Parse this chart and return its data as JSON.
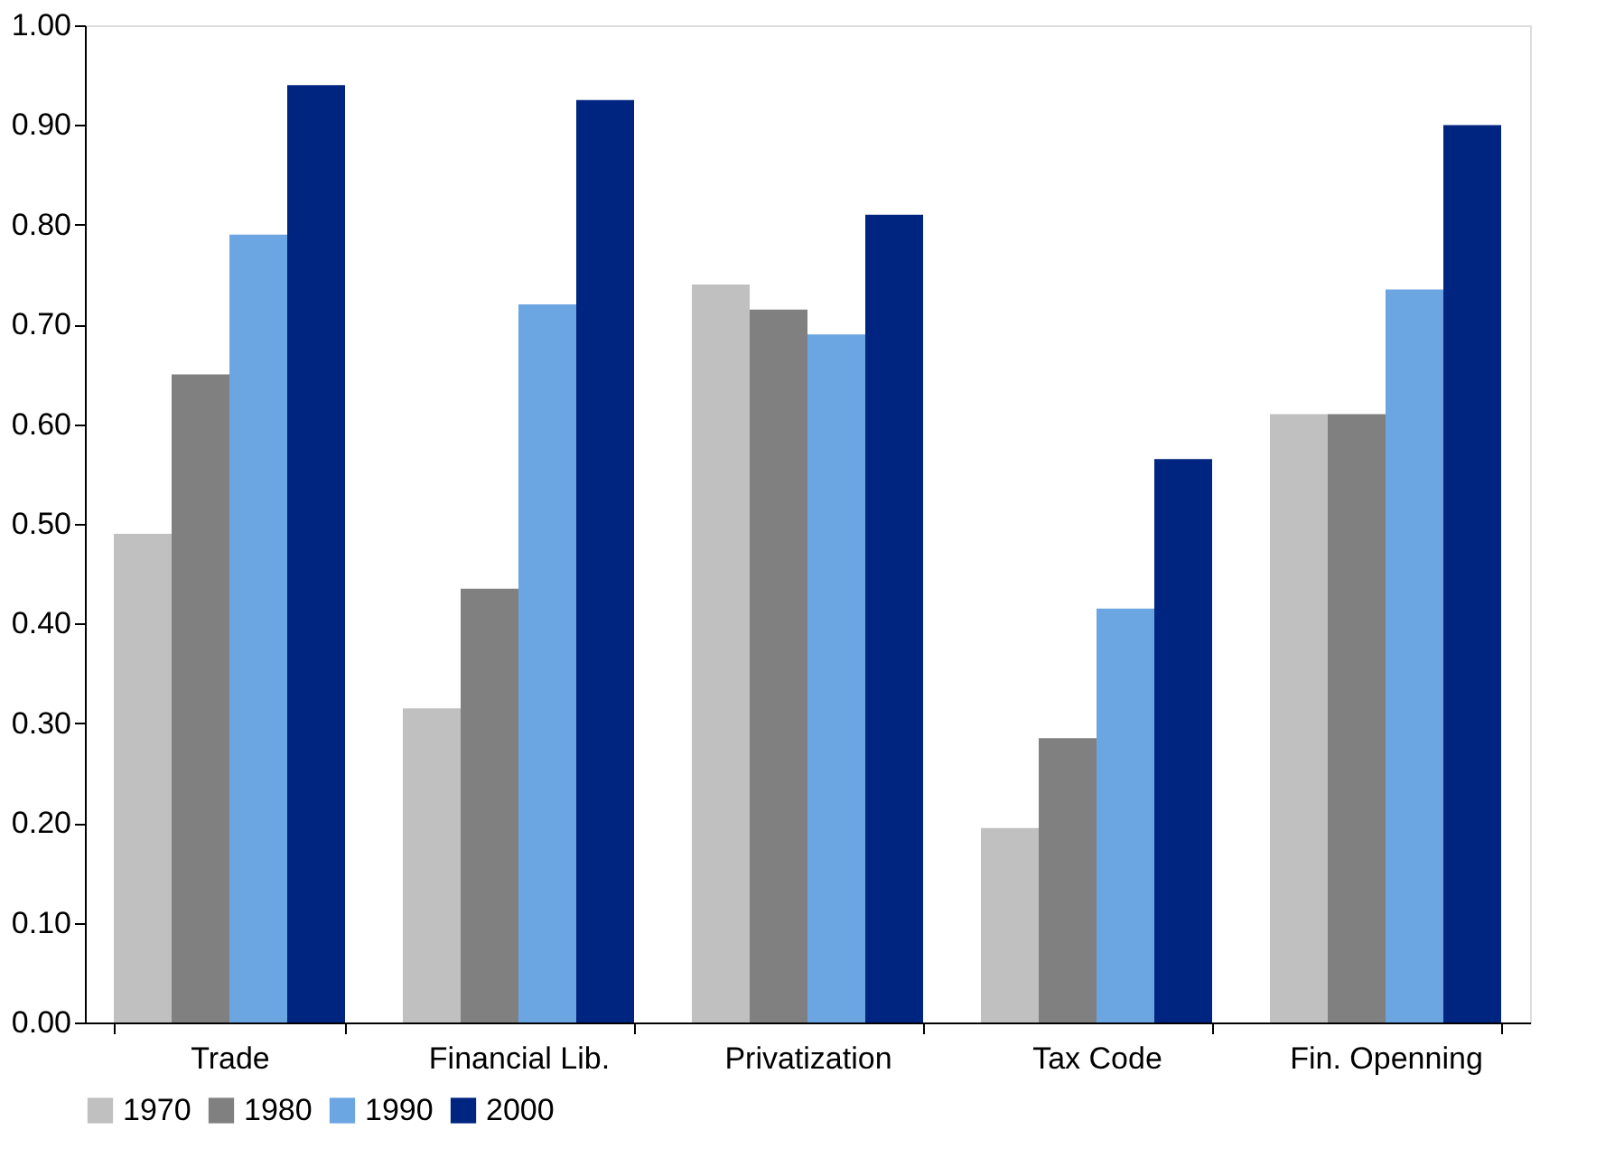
{
  "chart_data": {
    "type": "bar",
    "categories": [
      "Trade",
      "Financial Lib.",
      "Privatization",
      "Tax Code",
      "Fin. Openning"
    ],
    "series": [
      {
        "name": "1970",
        "color": "#c0c0c0",
        "values": [
          0.49,
          0.315,
          0.74,
          0.195,
          0.61
        ]
      },
      {
        "name": "1980",
        "color": "#808080",
        "values": [
          0.65,
          0.435,
          0.715,
          0.285,
          0.61
        ]
      },
      {
        "name": "1990",
        "color": "#6ca6e2",
        "values": [
          0.79,
          0.72,
          0.69,
          0.415,
          0.735
        ]
      },
      {
        "name": "2000",
        "color": "#002580",
        "values": [
          0.94,
          0.925,
          0.81,
          0.565,
          0.9
        ]
      }
    ],
    "ylim": [
      0,
      1
    ],
    "yticks": [
      {
        "value": 0,
        "label": "0.00"
      },
      {
        "value": 0.1,
        "label": "0.10"
      },
      {
        "value": 0.2,
        "label": "0.20"
      },
      {
        "value": 0.3,
        "label": "0.30"
      },
      {
        "value": 0.4,
        "label": "0.40"
      },
      {
        "value": 0.5,
        "label": "0.50"
      },
      {
        "value": 0.6,
        "label": "0.60"
      },
      {
        "value": 0.7,
        "label": "0.70"
      },
      {
        "value": 0.8,
        "label": "0.80"
      },
      {
        "value": 0.9,
        "label": "0.90"
      },
      {
        "value": 1,
        "label": "1.00"
      }
    ],
    "grid": false,
    "legend": "bottom left"
  }
}
